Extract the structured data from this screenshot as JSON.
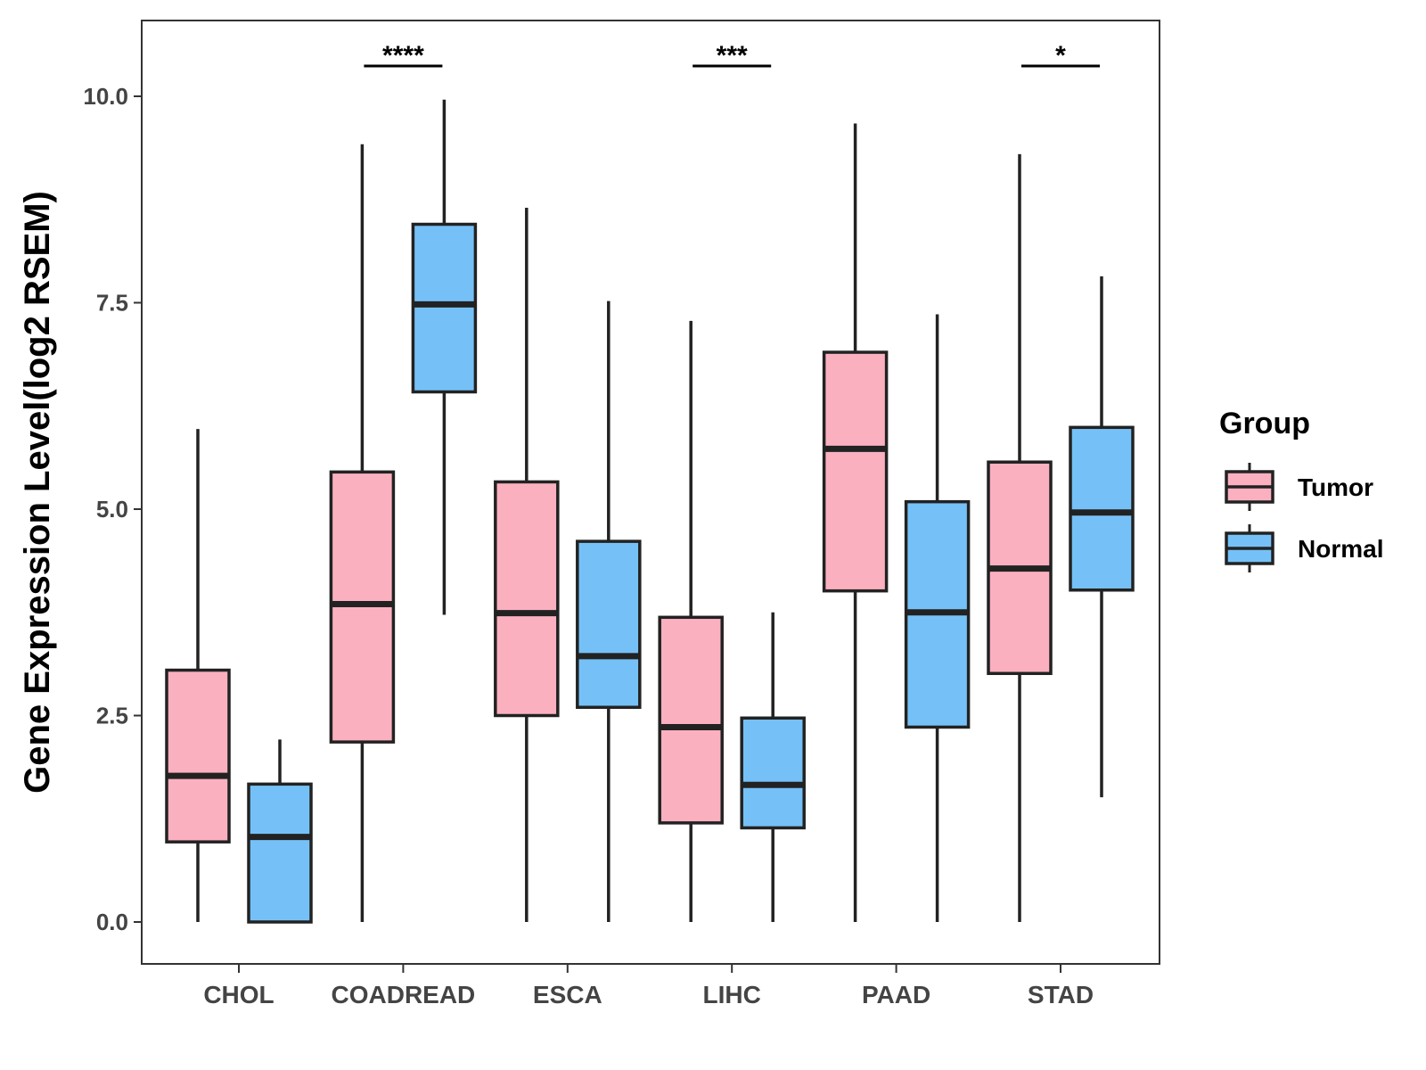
{
  "chart_data": {
    "type": "boxplot",
    "ylabel": "Gene Expression Level(log2 RSEM)",
    "xlabel": "",
    "ylim": [
      -0.5,
      10.9
    ],
    "yticks": [
      0.0,
      2.5,
      5.0,
      7.5,
      10.0
    ],
    "ytick_labels": [
      "0.0",
      "2.5",
      "5.0",
      "7.5",
      "10.0"
    ],
    "categories": [
      "CHOL",
      "COADREAD",
      "ESCA",
      "LIHC",
      "PAAD",
      "STAD"
    ],
    "legend": {
      "title": "Group",
      "position": "right",
      "entries": [
        {
          "name": "Tumor",
          "color": "#FBB0C0"
        },
        {
          "name": "Normal",
          "color": "#75C1F7"
        }
      ]
    },
    "series": [
      {
        "name": "Tumor",
        "color": "#FBB0C0",
        "boxes": [
          {
            "min": 0.0,
            "q1": 0.97,
            "median": 1.77,
            "q3": 3.05,
            "max": 5.97
          },
          {
            "min": 0.0,
            "q1": 2.18,
            "median": 3.85,
            "q3": 5.45,
            "max": 9.42
          },
          {
            "min": 0.0,
            "q1": 2.5,
            "median": 3.74,
            "q3": 5.33,
            "max": 8.65
          },
          {
            "min": 0.0,
            "q1": 1.2,
            "median": 2.36,
            "q3": 3.69,
            "max": 7.28
          },
          {
            "min": 0.0,
            "q1": 4.01,
            "median": 5.73,
            "q3": 6.9,
            "max": 9.67
          },
          {
            "min": 0.0,
            "q1": 3.01,
            "median": 4.28,
            "q3": 5.57,
            "max": 9.3
          }
        ]
      },
      {
        "name": "Normal",
        "color": "#75C1F7",
        "boxes": [
          {
            "min": 0.0,
            "q1": 0.0,
            "median": 1.03,
            "q3": 1.67,
            "max": 2.21
          },
          {
            "min": 3.72,
            "q1": 6.42,
            "median": 7.48,
            "q3": 8.45,
            "max": 9.96
          },
          {
            "min": 0.0,
            "q1": 2.6,
            "median": 3.22,
            "q3": 4.61,
            "max": 7.52
          },
          {
            "min": 0.0,
            "q1": 1.14,
            "median": 1.66,
            "q3": 2.47,
            "max": 3.75
          },
          {
            "min": 0.0,
            "q1": 2.36,
            "median": 3.75,
            "q3": 5.09,
            "max": 7.36
          },
          {
            "min": 1.51,
            "q1": 4.02,
            "median": 4.96,
            "q3": 5.99,
            "max": 7.82
          }
        ]
      }
    ],
    "significance": [
      {
        "category": "COADREAD",
        "label": "****"
      },
      {
        "category": "LIHC",
        "label": "***"
      },
      {
        "category": "STAD",
        "label": "*"
      }
    ],
    "grid": false
  }
}
